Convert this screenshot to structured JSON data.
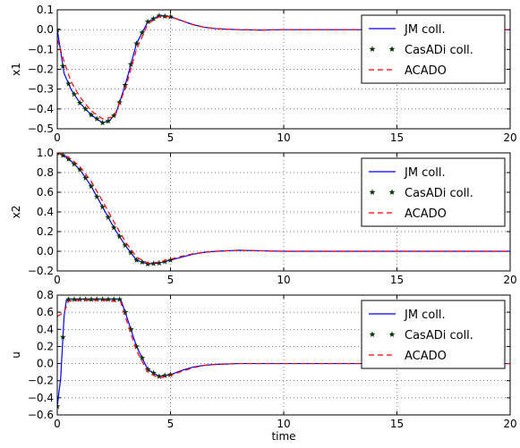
{
  "chart_data": [
    {
      "type": "line",
      "ylabel": "x1",
      "xlabel": "",
      "xlim": [
        0,
        20
      ],
      "ylim": [
        -0.5,
        0.1
      ],
      "xticks": [
        0,
        5,
        10,
        15,
        20
      ],
      "yticks": [
        -0.5,
        -0.4,
        -0.3,
        -0.2,
        -0.1,
        0.0,
        0.1
      ],
      "ytick_labels": [
        "−0.5",
        "−0.4",
        "−0.3",
        "−0.2",
        "−0.1",
        "0.0",
        "0.1"
      ],
      "grid": true,
      "legend_position": "top-right",
      "series": [
        {
          "name": "JM coll.",
          "style": "solid",
          "color": "#0000ff",
          "x": [
            0,
            0.3,
            0.6,
            1.0,
            1.5,
            2.0,
            2.3,
            2.6,
            3.0,
            3.5,
            4.0,
            4.5,
            5.0,
            5.5,
            6.0,
            6.5,
            7.0,
            8.0,
            9.0,
            10.0,
            20.0
          ],
          "y": [
            0.0,
            -0.22,
            -0.3,
            -0.37,
            -0.43,
            -0.47,
            -0.46,
            -0.42,
            -0.28,
            -0.07,
            0.04,
            0.07,
            0.065,
            0.045,
            0.025,
            0.012,
            0.005,
            0.0,
            -0.002,
            0.0,
            0.0
          ]
        },
        {
          "name": "CasADi coll.",
          "style": "star",
          "color": "#003300",
          "x": [
            0,
            0.3,
            0.6,
            1.0,
            1.5,
            2.0,
            2.3,
            2.6,
            3.0,
            3.5,
            4.0,
            4.5,
            5.0,
            5.5,
            6.0,
            6.5,
            7.0,
            8.0,
            9.0,
            10.0,
            20.0
          ],
          "y": [
            0.0,
            -0.22,
            -0.3,
            -0.37,
            -0.43,
            -0.47,
            -0.46,
            -0.42,
            -0.28,
            -0.07,
            0.04,
            0.07,
            0.065,
            0.045,
            0.025,
            0.012,
            0.005,
            0.0,
            -0.002,
            0.0,
            0.0
          ]
        },
        {
          "name": "ACADO",
          "style": "dashed",
          "color": "#ff0000",
          "x": [
            0,
            0.3,
            0.6,
            1.0,
            1.5,
            2.0,
            2.5,
            3.0,
            3.5,
            4.0,
            4.5,
            5.0,
            5.5,
            6.0,
            6.5,
            7.0,
            8.0,
            9.0,
            10.0,
            20.0
          ],
          "y": [
            -0.05,
            -0.16,
            -0.26,
            -0.34,
            -0.41,
            -0.45,
            -0.44,
            -0.3,
            -0.1,
            0.03,
            0.065,
            0.065,
            0.045,
            0.025,
            0.012,
            0.005,
            0.0,
            -0.002,
            0.0,
            0.0
          ]
        }
      ]
    },
    {
      "type": "line",
      "ylabel": "x2",
      "xlabel": "",
      "xlim": [
        0,
        20
      ],
      "ylim": [
        -0.2,
        1.0
      ],
      "xticks": [
        0,
        5,
        10,
        15,
        20
      ],
      "yticks": [
        -0.2,
        0.0,
        0.2,
        0.4,
        0.6,
        0.8,
        1.0
      ],
      "ytick_labels": [
        "−0.2",
        "0.0",
        "0.2",
        "0.4",
        "0.6",
        "0.8",
        "1.0"
      ],
      "grid": true,
      "legend_position": "top-right",
      "series": [
        {
          "name": "JM coll.",
          "style": "solid",
          "color": "#0000ff",
          "x": [
            0,
            0.3,
            0.6,
            1.0,
            1.5,
            2.0,
            2.5,
            3.0,
            3.5,
            4.0,
            4.5,
            5.0,
            5.5,
            6.0,
            6.5,
            7.0,
            8.0,
            9.0,
            10.0,
            20.0
          ],
          "y": [
            1.0,
            0.97,
            0.92,
            0.83,
            0.66,
            0.45,
            0.24,
            0.06,
            -0.09,
            -0.13,
            -0.12,
            -0.09,
            -0.06,
            -0.03,
            -0.01,
            0.0,
            0.01,
            0.005,
            0.0,
            0.0
          ]
        },
        {
          "name": "CasADi coll.",
          "style": "star",
          "color": "#003300",
          "x": [
            0,
            0.3,
            0.6,
            1.0,
            1.5,
            2.0,
            2.5,
            3.0,
            3.5,
            4.0,
            4.5,
            5.0,
            5.5,
            6.0,
            6.5,
            7.0,
            8.0,
            9.0,
            10.0,
            20.0
          ],
          "y": [
            1.0,
            0.97,
            0.92,
            0.83,
            0.66,
            0.45,
            0.24,
            0.06,
            -0.09,
            -0.13,
            -0.12,
            -0.09,
            -0.06,
            -0.03,
            -0.01,
            0.0,
            0.01,
            0.005,
            0.0,
            0.0
          ]
        },
        {
          "name": "ACADO",
          "style": "dashed",
          "color": "#ff0000",
          "x": [
            0,
            0.3,
            0.6,
            1.0,
            1.5,
            2.0,
            2.5,
            3.0,
            3.5,
            4.0,
            4.5,
            5.0,
            5.5,
            6.0,
            6.5,
            7.0,
            8.0,
            9.0,
            10.0,
            20.0
          ],
          "y": [
            1.0,
            0.98,
            0.94,
            0.86,
            0.71,
            0.51,
            0.3,
            0.1,
            -0.06,
            -0.12,
            -0.11,
            -0.08,
            -0.05,
            -0.025,
            -0.01,
            0.0,
            0.01,
            0.005,
            0.0,
            0.0
          ]
        }
      ]
    },
    {
      "type": "line",
      "ylabel": "u",
      "xlabel": "time",
      "xlim": [
        0,
        20
      ],
      "ylim": [
        -0.6,
        0.8
      ],
      "xticks": [
        0,
        5,
        10,
        15,
        20
      ],
      "yticks": [
        -0.6,
        -0.4,
        -0.2,
        0.0,
        0.2,
        0.4,
        0.6,
        0.8
      ],
      "ytick_labels": [
        "−0.6",
        "−0.4",
        "−0.2",
        "0.0",
        "0.2",
        "0.4",
        "0.6",
        "0.8"
      ],
      "grid": true,
      "legend_position": "top-right",
      "series": [
        {
          "name": "JM coll.",
          "style": "solid",
          "color": "#0000ff",
          "x": [
            0,
            0.15,
            0.3,
            0.4,
            0.5,
            1.0,
            2.0,
            2.8,
            3.0,
            3.5,
            4.0,
            4.5,
            5.0,
            5.5,
            6.0,
            6.5,
            7.0,
            8.0,
            9.0,
            10.0,
            20.0
          ],
          "y": [
            -0.5,
            -0.17,
            0.55,
            0.74,
            0.75,
            0.75,
            0.75,
            0.75,
            0.6,
            0.2,
            -0.07,
            -0.15,
            -0.13,
            -0.08,
            -0.04,
            -0.02,
            -0.01,
            0.0,
            0.0,
            0.0,
            0.0
          ]
        },
        {
          "name": "CasADi coll.",
          "style": "star",
          "color": "#003300",
          "x": [
            0,
            0.15,
            0.3,
            0.4,
            0.5,
            1.0,
            2.0,
            2.8,
            3.0,
            3.5,
            4.0,
            4.5,
            5.0,
            5.5,
            6.0,
            6.5,
            7.0,
            8.0,
            9.0,
            10.0,
            20.0
          ],
          "y": [
            -0.5,
            -0.17,
            0.55,
            0.74,
            0.75,
            0.75,
            0.75,
            0.75,
            0.6,
            0.2,
            -0.07,
            -0.15,
            -0.13,
            -0.08,
            -0.04,
            -0.02,
            -0.01,
            0.0,
            0.0,
            0.0,
            0.0
          ]
        },
        {
          "name": "ACADO",
          "style": "dashed",
          "color": "#ff0000",
          "x": [
            0,
            0.3,
            0.5,
            1.0,
            2.0,
            2.8,
            3.0,
            3.5,
            4.0,
            4.5,
            5.0,
            5.5,
            6.0,
            6.5,
            7.0,
            8.0,
            9.0,
            10.0,
            20.0
          ],
          "y": [
            0.55,
            0.6,
            0.73,
            0.74,
            0.74,
            0.72,
            0.55,
            0.15,
            -0.1,
            -0.17,
            -0.14,
            -0.09,
            -0.05,
            -0.02,
            -0.01,
            0.0,
            0.0,
            0.0,
            0.0
          ]
        }
      ]
    }
  ]
}
